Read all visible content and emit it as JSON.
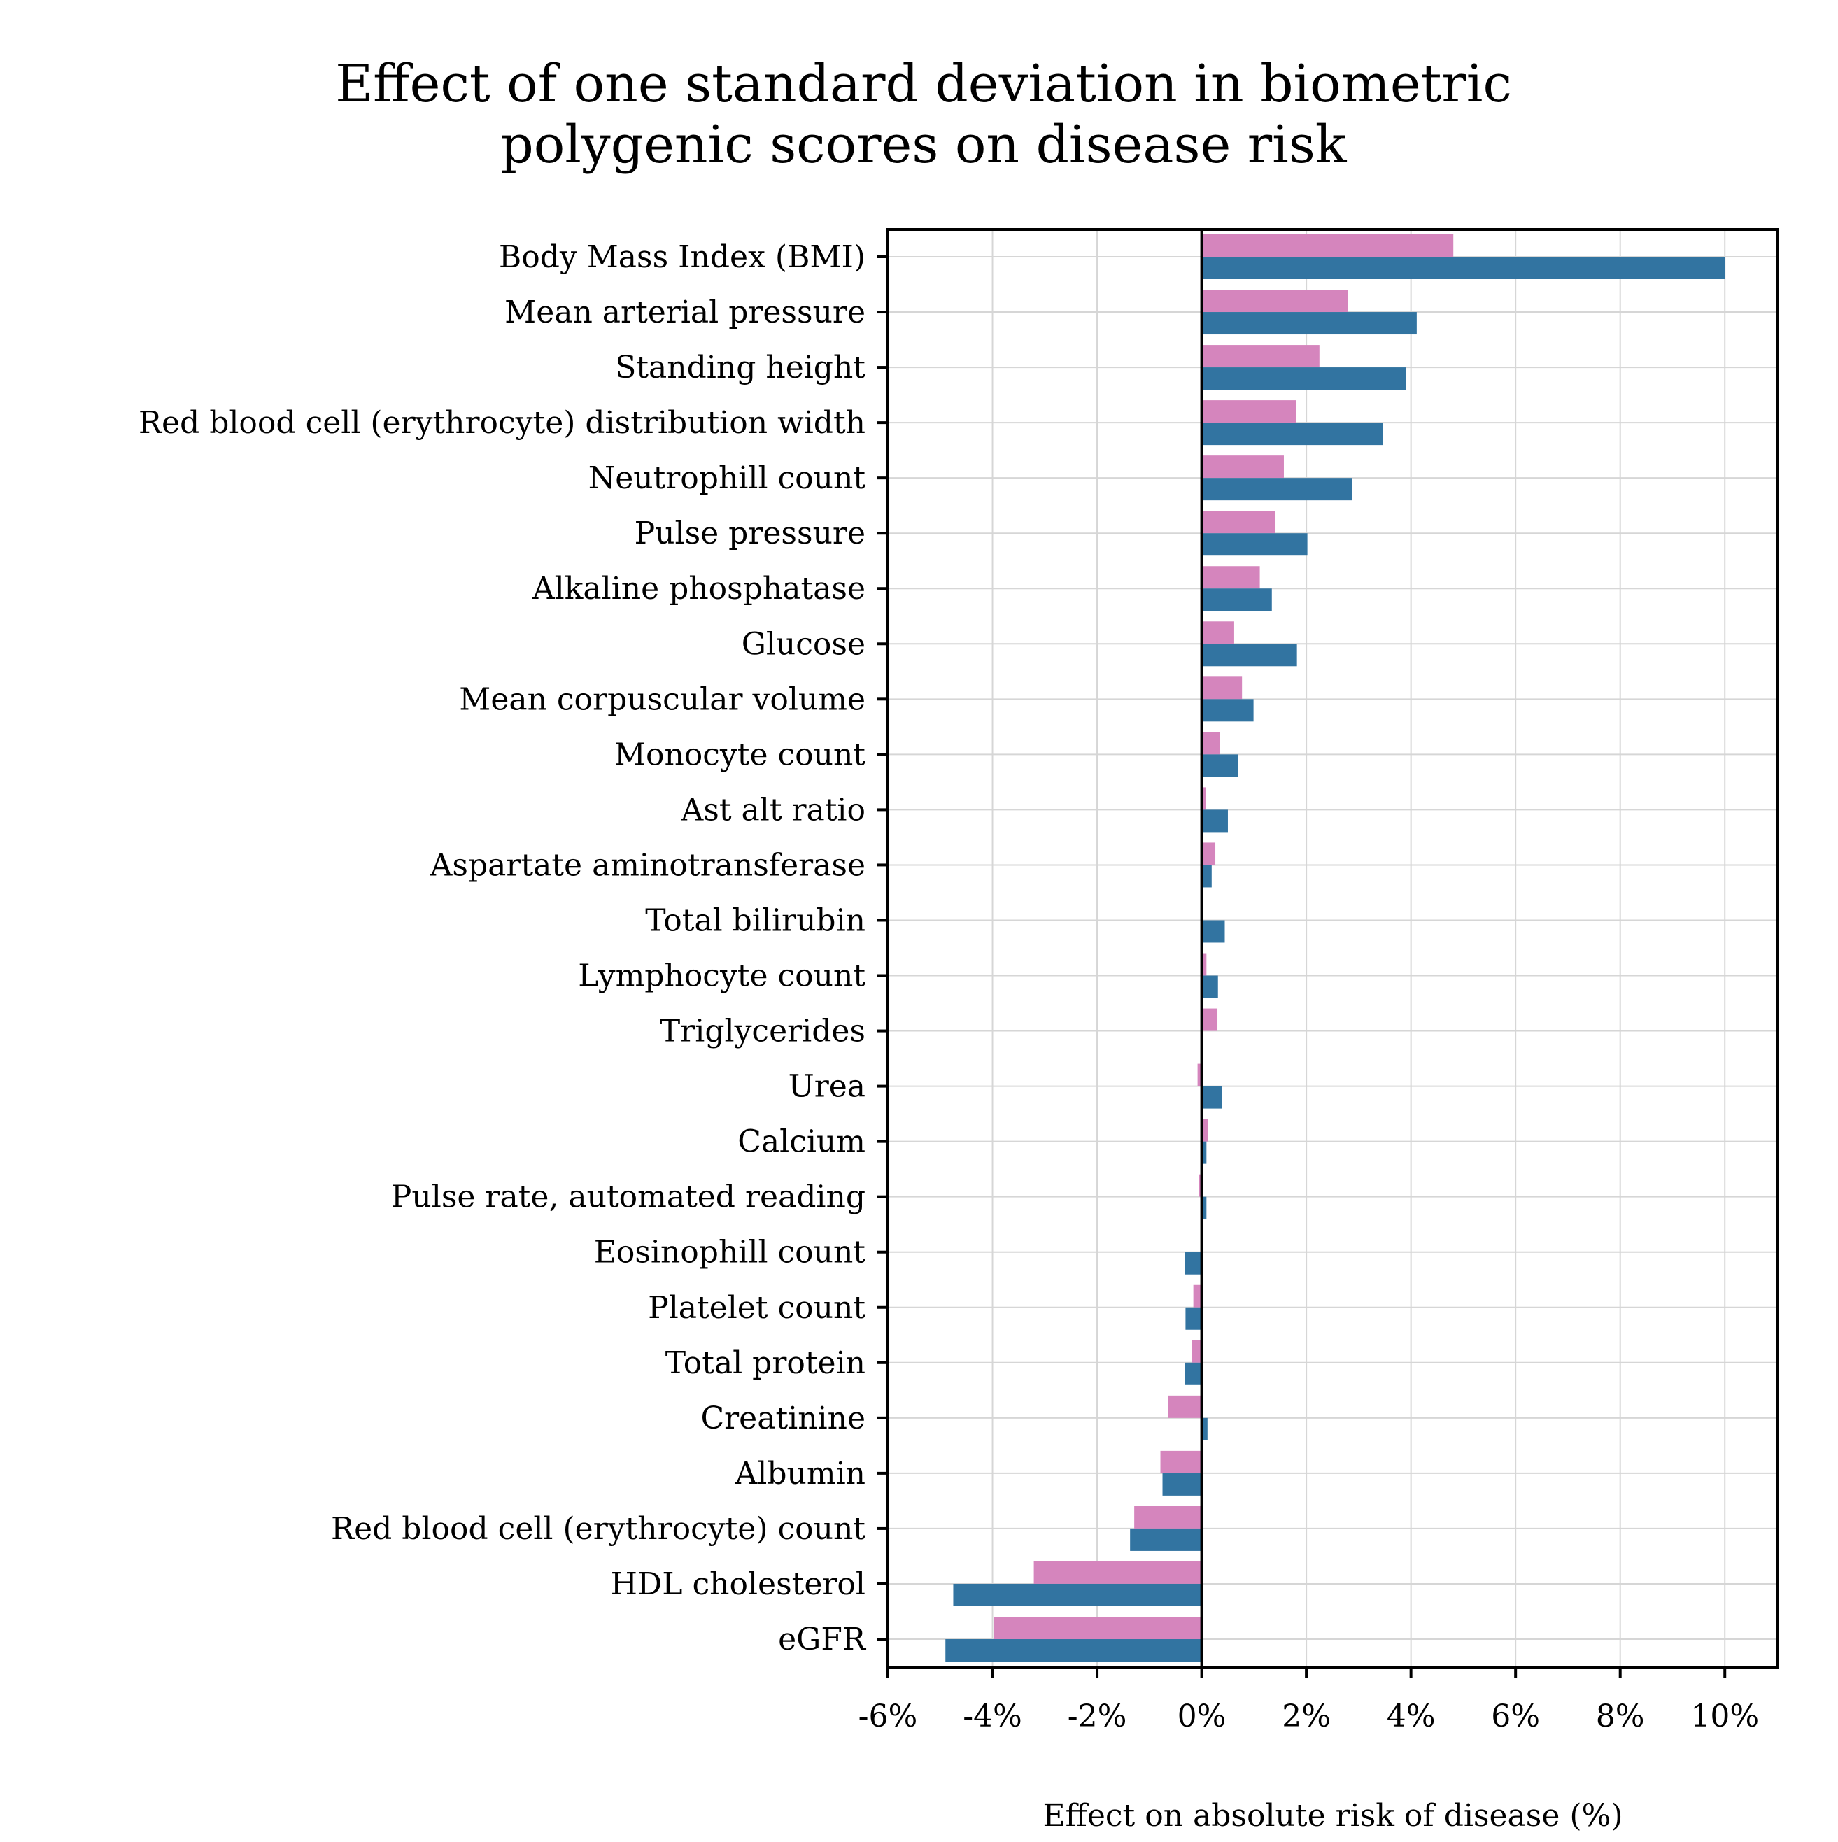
{
  "chart_data": {
    "type": "bar",
    "orientation": "horizontal",
    "title": "Effect of one standard deviation in biometric\npolygenic scores on disease risk",
    "title_lines": [
      "Effect of one standard deviation in biometric",
      "polygenic scores on disease risk"
    ],
    "xlabel": "Effect on absolute risk of disease (%)",
    "ylabel": "",
    "xlim": [
      -6,
      11
    ],
    "xticks": [
      -6,
      -4,
      -2,
      0,
      2,
      4,
      6,
      8,
      10
    ],
    "xtick_labels": [
      "-6%",
      "-4%",
      "-2%",
      "0%",
      "2%",
      "4%",
      "6%",
      "8%",
      "10%"
    ],
    "grid": true,
    "legend": null,
    "categories": [
      "Body Mass Index (BMI)",
      "Mean arterial pressure",
      "Standing height",
      "Red blood cell (erythrocyte) distribution width",
      "Neutrophill count",
      "Pulse pressure",
      "Alkaline phosphatase",
      "Glucose",
      "Mean corpuscular volume",
      "Monocyte count",
      "Ast alt ratio",
      "Aspartate aminotransferase",
      "Total bilirubin",
      "Lymphocyte count",
      "Triglycerides",
      "Urea",
      "Calcium",
      "Pulse rate, automated reading",
      "Eosinophill count",
      "Platelet count",
      "Total protein",
      "Creatinine",
      "Albumin",
      "Red blood cell (erythrocyte) count",
      "HDL cholesterol",
      "eGFR"
    ],
    "series": [
      {
        "name": "series-pink",
        "color": "#d585bd",
        "values": [
          4.81,
          2.79,
          2.25,
          1.81,
          1.57,
          1.41,
          1.11,
          0.62,
          0.77,
          0.35,
          0.08,
          0.26,
          0.0,
          0.09,
          0.3,
          -0.08,
          0.12,
          -0.06,
          0.02,
          -0.16,
          -0.19,
          -0.64,
          -0.79,
          -1.29,
          -3.21,
          -3.97
        ]
      },
      {
        "name": "series-blue",
        "color": "#3274a1",
        "values": [
          10.0,
          4.11,
          3.9,
          3.46,
          2.87,
          2.02,
          1.34,
          1.82,
          0.99,
          0.69,
          0.5,
          0.19,
          0.44,
          0.31,
          0.0,
          0.39,
          0.09,
          0.09,
          -0.32,
          -0.31,
          -0.32,
          0.11,
          -0.75,
          -1.37,
          -4.75,
          -4.9
        ]
      }
    ]
  }
}
